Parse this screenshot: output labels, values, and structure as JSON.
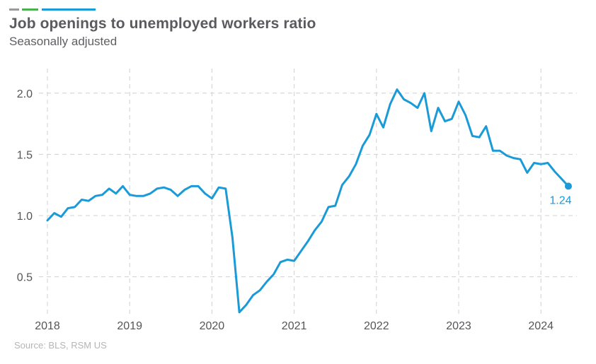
{
  "header": {
    "accent_bars": [
      {
        "name": "gray",
        "color": "#9a9a9a",
        "x": 13,
        "width": 14
      },
      {
        "name": "green",
        "color": "#4caf50",
        "x": 31,
        "width": 23
      },
      {
        "name": "blue",
        "color": "#1a9bd7",
        "x": 59,
        "width": 76
      }
    ],
    "title": "Job openings to unemployed workers ratio",
    "subtitle": "Seasonally adjusted"
  },
  "footer": {
    "source": "Source: BLS, RSM US"
  },
  "colors": {
    "line": "#1a9bd7",
    "grid": "#d0d0d0",
    "tick_text": "#555559"
  },
  "chart_data": {
    "type": "line",
    "title": "Job openings to unemployed workers ratio",
    "subtitle": "Seasonally adjusted",
    "xlabel": "",
    "ylabel": "",
    "ylim": [
      0.15,
      2.2
    ],
    "yticks": [
      0.5,
      1.0,
      1.5,
      2.0
    ],
    "ytick_labels": [
      "0.5",
      "1.0",
      "1.5",
      "2.0"
    ],
    "xticks": [
      "2018",
      "2019",
      "2020",
      "2021",
      "2022",
      "2023",
      "2024"
    ],
    "grid": true,
    "legend": null,
    "annotation": {
      "text": "1.24",
      "point": "2024-05"
    },
    "series": [
      {
        "name": "Job openings to unemployed workers ratio",
        "color": "#1a9bd7",
        "start": "2018-01",
        "frequency": "monthly",
        "values": [
          0.96,
          1.02,
          0.99,
          1.06,
          1.07,
          1.13,
          1.12,
          1.16,
          1.17,
          1.22,
          1.18,
          1.24,
          1.17,
          1.16,
          1.16,
          1.18,
          1.22,
          1.23,
          1.21,
          1.16,
          1.21,
          1.24,
          1.24,
          1.18,
          1.14,
          1.23,
          1.22,
          0.82,
          0.21,
          0.27,
          0.35,
          0.39,
          0.46,
          0.52,
          0.62,
          0.64,
          0.63,
          0.71,
          0.79,
          0.88,
          0.95,
          1.07,
          1.08,
          1.25,
          1.32,
          1.42,
          1.57,
          1.66,
          1.83,
          1.72,
          1.91,
          2.03,
          1.95,
          1.92,
          1.88,
          2.0,
          1.69,
          1.88,
          1.77,
          1.79,
          1.93,
          1.82,
          1.65,
          1.64,
          1.73,
          1.53,
          1.53,
          1.49,
          1.47,
          1.46,
          1.35,
          1.43,
          1.42,
          1.43,
          1.36,
          1.3,
          1.24
        ]
      }
    ]
  }
}
